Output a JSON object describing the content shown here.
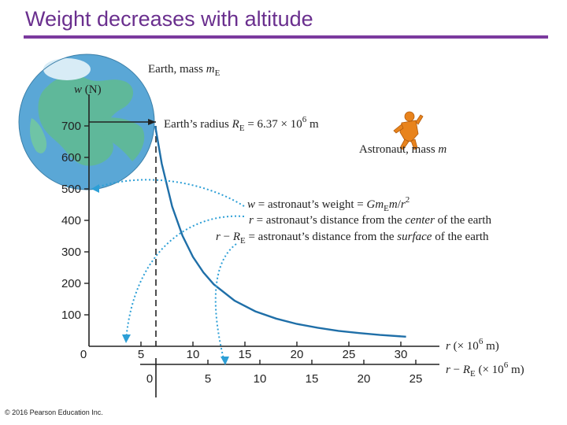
{
  "slide": {
    "title": "Weight decreases with altitude",
    "copyright": "© 2016 Pearson Education Inc."
  },
  "colors": {
    "title": "#6a2f8e",
    "rule": "#7b3a9e",
    "curve": "#1f6fa8",
    "dotted": "#2d9fd6",
    "astronaut": "#e8831c",
    "earth_ocean": "#5aa7d6",
    "earth_land": "#5fb89a"
  },
  "figure": {
    "earth_label_main": "Earth, mass ",
    "earth_label_sub": "E",
    "radius_label_pre": "Earth’s radius ",
    "radius_label_sub": "E",
    "radius_label_value": " = 6.37 × 10",
    "radius_label_exp": "6",
    "radius_label_unit": " m",
    "astronaut_label": "Astronaut, mass ",
    "astronaut_label_var": "m",
    "legend": [
      {
        "sym": "w",
        "sym_sub": "",
        "text": " = astronaut’s weight = ",
        "italic_tail": "Gm",
        "tail_sub": "E",
        "tail_rest": "m/r",
        "tail_exp": "2"
      },
      {
        "sym": "r",
        "sym_sub": "",
        "text": " = astronaut’s distance from the ",
        "italic_tail": "center",
        "tail_sub": "",
        "tail_rest": " of the earth",
        "tail_exp": ""
      },
      {
        "sym": "r − R",
        "sym_sub": "E",
        "text": " = astronaut’s distance from the ",
        "italic_tail": "surface",
        "tail_sub": "",
        "tail_rest": " of the earth",
        "tail_exp": ""
      }
    ]
  },
  "chart_data": {
    "type": "line",
    "title": "",
    "ylabel": "w (N)",
    "xlabel": "r (× 10⁶ m)",
    "xlabel2": "r − R_E (× 10⁶ m)",
    "xlim": [
      0,
      30
    ],
    "ylim": [
      0,
      700
    ],
    "x_ticks": [
      5,
      10,
      15,
      20,
      25,
      30
    ],
    "x2_ticks": [
      0,
      5,
      10,
      15,
      20,
      25
    ],
    "y_ticks": [
      100,
      200,
      300,
      400,
      500,
      600,
      700
    ],
    "origin_label": "0",
    "earth_radius": 6.37,
    "series": [
      {
        "x": [
          6.37,
          7,
          8,
          9,
          10,
          11,
          12,
          14,
          16,
          18,
          20,
          22,
          24,
          26,
          28,
          30.5
        ],
        "y": [
          700,
          580,
          444,
          351,
          284,
          235,
          197,
          145,
          111,
          88,
          71,
          59,
          49,
          42,
          36,
          30.5
        ]
      }
    ]
  }
}
